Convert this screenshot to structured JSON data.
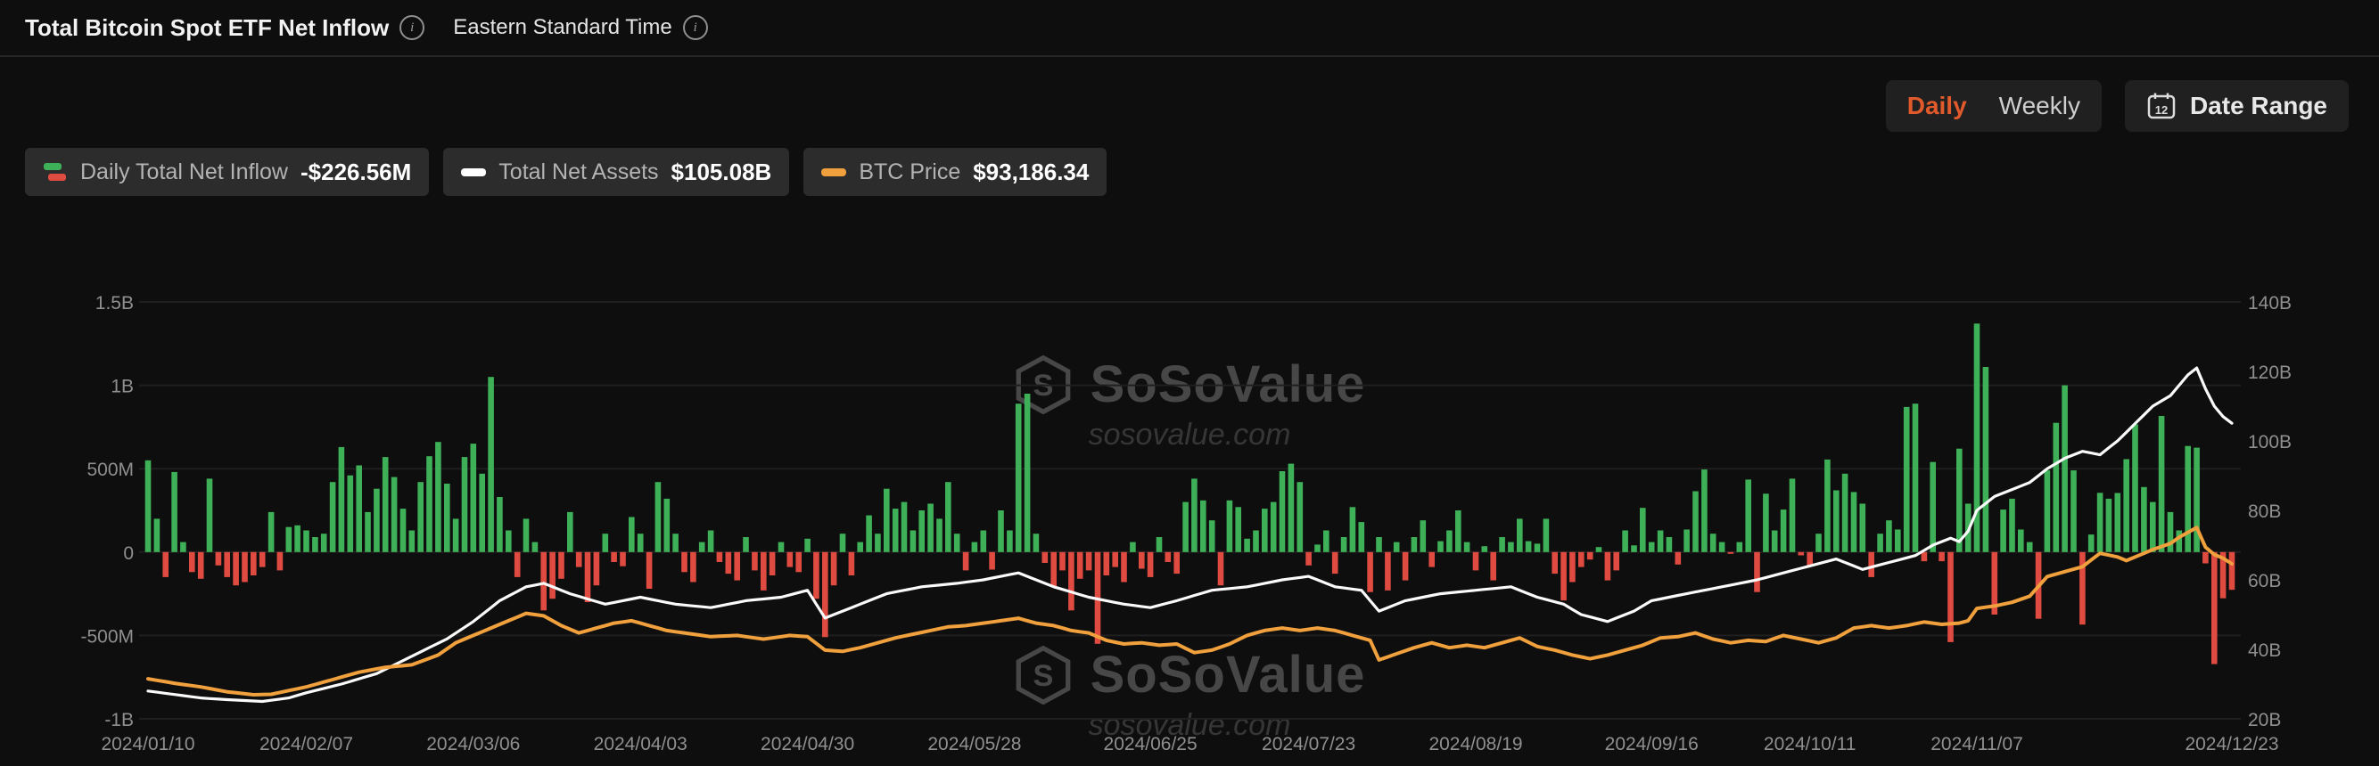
{
  "header": {
    "title": "Total Bitcoin Spot ETF Net Inflow",
    "timezone": "Eastern Standard Time"
  },
  "icons": {
    "info_glyph": "i",
    "calendar_day": "12",
    "logo_letter": "S"
  },
  "controls": {
    "daily_label": "Daily",
    "weekly_label": "Weekly",
    "date_range_label": "Date Range"
  },
  "legend": [
    {
      "label": "Daily Total Net Inflow",
      "value": "-$226.56M"
    },
    {
      "label": "Total Net Assets",
      "value": "$105.08B"
    },
    {
      "label": "BTC Price",
      "value": "$93,186.34"
    }
  ],
  "watermark": {
    "brand": "SoSoValue",
    "domain": "sosovalue.com"
  },
  "colors": {
    "background": "#0e0e0e",
    "panel": "#202020",
    "pill": "#2c2c2c",
    "accent_daily": "#e05a2b",
    "positive": "#3eb158",
    "negative": "#e04b41",
    "net_assets_line": "#fafafa",
    "btc_price_line": "#f0a03c",
    "axis_text": "#8f8f8f",
    "grid": "#1f1f1f"
  },
  "chart_data": {
    "type": "combo",
    "title": "Total Bitcoin Spot ETF Net Inflow",
    "legend_position": "top-left",
    "grid": "horizontal",
    "left_axis": {
      "unit": "USD (bars, millions)",
      "min": -1000,
      "max": 1500,
      "tick_values": [
        1500,
        1000,
        500,
        0,
        -500,
        -1000
      ],
      "tick_labels": [
        "1.5B",
        "1B",
        "500M",
        "0",
        "-500M",
        "-1B"
      ]
    },
    "right_axis": {
      "unit": "USD (net assets, billions)",
      "min": 20,
      "max": 140,
      "tick_values": [
        140,
        120,
        100,
        80,
        60,
        40,
        20
      ],
      "tick_labels": [
        "140B",
        "120B",
        "100B",
        "80B",
        "60B",
        "40B",
        "20B"
      ]
    },
    "price_axis": {
      "unit": "USD thousands",
      "min": 30,
      "max": 200,
      "hidden": true
    },
    "x_axis": {
      "n_points": 238,
      "tick_labels": [
        "2024/01/10",
        "2024/02/07",
        "2024/03/06",
        "2024/04/03",
        "2024/04/30",
        "2024/05/28",
        "2024/06/25",
        "2024/07/23",
        "2024/08/19",
        "2024/09/16",
        "2024/10/11",
        "2024/11/07",
        "2024/12/23"
      ],
      "tick_indices": [
        0,
        18,
        37,
        56,
        75,
        94,
        114,
        132,
        151,
        171,
        189,
        208,
        237
      ]
    },
    "series": [
      {
        "name": "Daily Total Net Inflow",
        "type": "bar",
        "axis": "left",
        "unit": "USD millions",
        "current_value": "-$226.56M",
        "color_positive": "#3eb158",
        "color_negative": "#e04b41",
        "values": [
          550,
          200,
          -150,
          480,
          60,
          -120,
          -160,
          440,
          -80,
          -150,
          -200,
          -180,
          -140,
          -90,
          240,
          -110,
          150,
          160,
          130,
          90,
          110,
          420,
          630,
          460,
          520,
          240,
          380,
          570,
          450,
          260,
          130,
          420,
          575,
          660,
          410,
          200,
          570,
          650,
          470,
          1050,
          330,
          130,
          -150,
          200,
          60,
          -350,
          -280,
          -160,
          240,
          -90,
          -300,
          -200,
          110,
          -60,
          -85,
          210,
          110,
          -220,
          420,
          320,
          110,
          -120,
          -180,
          60,
          130,
          -60,
          -130,
          -170,
          90,
          -110,
          -230,
          -140,
          60,
          -90,
          -120,
          80,
          -280,
          -510,
          -200,
          110,
          -140,
          60,
          220,
          110,
          380,
          260,
          300,
          130,
          250,
          290,
          200,
          420,
          110,
          -110,
          60,
          130,
          -105,
          250,
          130,
          890,
          950,
          110,
          -65,
          -210,
          -110,
          -350,
          -160,
          -110,
          -550,
          -140,
          -90,
          -180,
          60,
          -100,
          -150,
          90,
          -60,
          -130,
          300,
          440,
          310,
          190,
          -200,
          310,
          270,
          80,
          130,
          260,
          300,
          485,
          530,
          420,
          -80,
          45,
          130,
          -130,
          90,
          270,
          180,
          -240,
          90,
          -230,
          60,
          -170,
          90,
          190,
          -90,
          65,
          130,
          250,
          60,
          -110,
          35,
          -170,
          90,
          60,
          200,
          65,
          50,
          200,
          -130,
          -290,
          -180,
          -90,
          -45,
          30,
          -170,
          -110,
          130,
          40,
          265,
          60,
          130,
          90,
          -75,
          135,
          365,
          495,
          110,
          60,
          -10,
          60,
          435,
          -240,
          350,
          130,
          255,
          440,
          -20,
          -80,
          110,
          555,
          370,
          470,
          360,
          290,
          -150,
          110,
          190,
          135,
          870,
          890,
          -55,
          540,
          -55,
          -540,
          620,
          290,
          1370,
          1110,
          -375,
          255,
          320,
          135,
          60,
          -400,
          490,
          775,
          1000,
          490,
          -435,
          105,
          355,
          320,
          354,
          557,
          766,
          390,
          300,
          816,
          240,
          130,
          636,
          626,
          -68,
          -672,
          -277,
          -226.56
        ]
      },
      {
        "name": "Total Net Assets",
        "type": "line",
        "axis": "right",
        "unit": "USD billions",
        "current_value": "$105.08B",
        "color": "#fafafa",
        "keyframes": [
          [
            0,
            28
          ],
          [
            3,
            27
          ],
          [
            6,
            26
          ],
          [
            9,
            25.5
          ],
          [
            13,
            25
          ],
          [
            16,
            26
          ],
          [
            18,
            27.5
          ],
          [
            22,
            30
          ],
          [
            26,
            33
          ],
          [
            30,
            38
          ],
          [
            34,
            43
          ],
          [
            37,
            48
          ],
          [
            40,
            54
          ],
          [
            43,
            58
          ],
          [
            45,
            59
          ],
          [
            48,
            56
          ],
          [
            52,
            53
          ],
          [
            56,
            55
          ],
          [
            60,
            53
          ],
          [
            64,
            52
          ],
          [
            68,
            54
          ],
          [
            72,
            55
          ],
          [
            75,
            57
          ],
          [
            77,
            49
          ],
          [
            80,
            52
          ],
          [
            84,
            56
          ],
          [
            88,
            58
          ],
          [
            92,
            59
          ],
          [
            95,
            60
          ],
          [
            99,
            62
          ],
          [
            103,
            58
          ],
          [
            107,
            55
          ],
          [
            111,
            53
          ],
          [
            114,
            52
          ],
          [
            117,
            54
          ],
          [
            121,
            57
          ],
          [
            125,
            58
          ],
          [
            129,
            60
          ],
          [
            132,
            61
          ],
          [
            135,
            58
          ],
          [
            138,
            57
          ],
          [
            140,
            51
          ],
          [
            143,
            54
          ],
          [
            147,
            56
          ],
          [
            151,
            57
          ],
          [
            155,
            58
          ],
          [
            158,
            55
          ],
          [
            161,
            53
          ],
          [
            163,
            50
          ],
          [
            166,
            48
          ],
          [
            169,
            51
          ],
          [
            171,
            54
          ],
          [
            175,
            56
          ],
          [
            179,
            58
          ],
          [
            183,
            60
          ],
          [
            186,
            62
          ],
          [
            189,
            64
          ],
          [
            192,
            66
          ],
          [
            195,
            63
          ],
          [
            198,
            65
          ],
          [
            201,
            67
          ],
          [
            203,
            70
          ],
          [
            205,
            72
          ],
          [
            206,
            71
          ],
          [
            207,
            74
          ],
          [
            208,
            80
          ],
          [
            210,
            84
          ],
          [
            212,
            86
          ],
          [
            214,
            88
          ],
          [
            216,
            92
          ],
          [
            218,
            95
          ],
          [
            220,
            97
          ],
          [
            222,
            96
          ],
          [
            224,
            100
          ],
          [
            226,
            105
          ],
          [
            228,
            110
          ],
          [
            230,
            113
          ],
          [
            231,
            116
          ],
          [
            232,
            119
          ],
          [
            233,
            121
          ],
          [
            234,
            115
          ],
          [
            235,
            110
          ],
          [
            236,
            107
          ],
          [
            237,
            105.08
          ]
        ]
      },
      {
        "name": "BTC Price",
        "type": "line",
        "axis": "price",
        "unit": "USD thousands",
        "current_value": "$93,186.34",
        "color": "#f0a03c",
        "keyframes": [
          [
            0,
            46.3
          ],
          [
            3,
            44.5
          ],
          [
            6,
            43
          ],
          [
            9,
            41
          ],
          [
            12,
            39.8
          ],
          [
            14,
            40
          ],
          [
            16,
            41.5
          ],
          [
            18,
            43
          ],
          [
            21,
            46
          ],
          [
            24,
            49
          ],
          [
            27,
            51
          ],
          [
            30,
            52
          ],
          [
            33,
            56
          ],
          [
            35,
            61
          ],
          [
            37,
            64
          ],
          [
            39,
            67
          ],
          [
            41,
            70
          ],
          [
            43,
            73
          ],
          [
            45,
            72
          ],
          [
            47,
            68
          ],
          [
            49,
            65
          ],
          [
            51,
            67
          ],
          [
            53,
            69
          ],
          [
            55,
            70
          ],
          [
            57,
            68
          ],
          [
            59,
            66
          ],
          [
            61,
            65
          ],
          [
            64,
            63.5
          ],
          [
            67,
            64
          ],
          [
            70,
            62.5
          ],
          [
            73,
            64
          ],
          [
            75,
            63.5
          ],
          [
            77,
            58
          ],
          [
            79,
            57.5
          ],
          [
            81,
            59
          ],
          [
            83,
            61
          ],
          [
            85,
            63
          ],
          [
            87,
            64.5
          ],
          [
            89,
            66
          ],
          [
            91,
            67.5
          ],
          [
            93,
            68
          ],
          [
            95,
            69
          ],
          [
            97,
            70
          ],
          [
            99,
            71
          ],
          [
            101,
            69
          ],
          [
            103,
            68
          ],
          [
            105,
            66
          ],
          [
            107,
            65
          ],
          [
            109,
            62
          ],
          [
            111,
            60.5
          ],
          [
            113,
            61
          ],
          [
            115,
            60
          ],
          [
            117,
            60.5
          ],
          [
            119,
            57
          ],
          [
            121,
            58
          ],
          [
            123,
            60.5
          ],
          [
            125,
            64
          ],
          [
            127,
            66
          ],
          [
            129,
            67
          ],
          [
            131,
            66
          ],
          [
            133,
            67
          ],
          [
            135,
            66
          ],
          [
            137,
            64
          ],
          [
            139,
            62
          ],
          [
            140,
            54
          ],
          [
            142,
            56.5
          ],
          [
            144,
            59
          ],
          [
            146,
            61
          ],
          [
            148,
            59
          ],
          [
            150,
            60
          ],
          [
            152,
            59
          ],
          [
            154,
            61
          ],
          [
            156,
            63
          ],
          [
            158,
            59.5
          ],
          [
            160,
            58
          ],
          [
            162,
            56
          ],
          [
            164,
            54.5
          ],
          [
            166,
            56
          ],
          [
            168,
            58
          ],
          [
            170,
            60
          ],
          [
            172,
            63
          ],
          [
            174,
            63.5
          ],
          [
            176,
            65
          ],
          [
            178,
            62.5
          ],
          [
            180,
            61
          ],
          [
            182,
            62
          ],
          [
            184,
            61.5
          ],
          [
            186,
            64
          ],
          [
            188,
            62.5
          ],
          [
            190,
            61
          ],
          [
            192,
            63
          ],
          [
            194,
            67
          ],
          [
            196,
            68
          ],
          [
            198,
            67
          ],
          [
            200,
            68
          ],
          [
            202,
            69.5
          ],
          [
            204,
            68.5
          ],
          [
            206,
            69
          ],
          [
            207,
            70
          ],
          [
            208,
            75
          ],
          [
            210,
            76
          ],
          [
            212,
            77.5
          ],
          [
            214,
            80
          ],
          [
            216,
            88
          ],
          [
            218,
            90
          ],
          [
            220,
            92
          ],
          [
            222,
            97.5
          ],
          [
            224,
            96
          ],
          [
            225,
            94.5
          ],
          [
            226,
            96
          ],
          [
            228,
            99
          ],
          [
            230,
            101.5
          ],
          [
            231,
            104
          ],
          [
            232,
            106
          ],
          [
            233,
            108
          ],
          [
            234,
            100
          ],
          [
            235,
            97
          ],
          [
            236,
            95.5
          ],
          [
            237,
            93.19
          ]
        ]
      }
    ]
  }
}
